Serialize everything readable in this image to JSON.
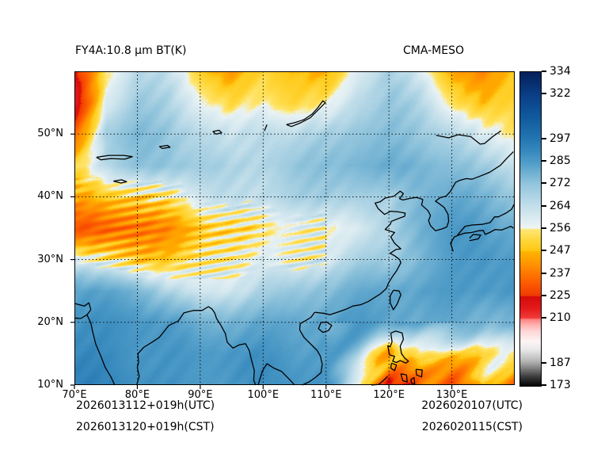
{
  "figure": {
    "title": "FY4A:10.8 μm BT(K)",
    "model_label": "CMA-MESO"
  },
  "axes": {
    "lon_range": [
      70,
      140
    ],
    "lat_range": [
      10,
      60
    ],
    "lon_ticks": [
      {
        "value": 70,
        "label": "70°E"
      },
      {
        "value": 80,
        "label": "80°E"
      },
      {
        "value": 90,
        "label": "90°E"
      },
      {
        "value": 100,
        "label": "100°E"
      },
      {
        "value": 110,
        "label": "110°E"
      },
      {
        "value": 120,
        "label": "120°E"
      },
      {
        "value": 130,
        "label": "130°E"
      }
    ],
    "lat_ticks": [
      {
        "value": 50,
        "label": "50°N"
      },
      {
        "value": 40,
        "label": "40°N"
      },
      {
        "value": 30,
        "label": "30°N"
      },
      {
        "value": 20,
        "label": "20°N"
      },
      {
        "value": 10,
        "label": "10°N"
      }
    ],
    "gridline_lons": [
      80,
      90,
      100,
      110,
      120,
      130
    ],
    "gridline_lats": [
      50,
      40,
      30,
      20
    ]
  },
  "colorbar": {
    "levels": [
      334,
      322,
      310,
      297,
      285,
      272,
      264,
      256,
      247,
      237,
      225,
      210,
      198,
      187,
      173
    ],
    "tick_labels": [
      "334",
      "322",
      "297",
      "285",
      "272",
      "264",
      "256",
      "247",
      "237",
      "225",
      "210",
      "187",
      "173"
    ],
    "gradient_stops": [
      [
        173,
        "#000000"
      ],
      [
        179,
        "#3c3c3c"
      ],
      [
        185,
        "#8a8a8a"
      ],
      [
        189,
        "#bdbdbd"
      ],
      [
        194,
        "#e9e9e9"
      ],
      [
        198,
        "#fdf5f5"
      ],
      [
        203,
        "#ffd9d9"
      ],
      [
        207,
        "#ffb0b0"
      ],
      [
        210,
        "#ff7d7d"
      ],
      [
        210.4,
        "#f23c3c"
      ],
      [
        217,
        "#e51b1b"
      ],
      [
        225,
        "#d60b0b"
      ],
      [
        225.4,
        "#ef3a02"
      ],
      [
        231,
        "#fb5500"
      ],
      [
        237,
        "#ff7600"
      ],
      [
        242,
        "#ff9800"
      ],
      [
        247,
        "#ffb300"
      ],
      [
        247.4,
        "#ffc713"
      ],
      [
        252,
        "#ffd83e"
      ],
      [
        256,
        "#ffe878"
      ],
      [
        256.4,
        "#eef5f6"
      ],
      [
        264,
        "#c5e0eb"
      ],
      [
        272,
        "#94c6dd"
      ],
      [
        279,
        "#6fb0d2"
      ],
      [
        285,
        "#4f9cc8"
      ],
      [
        291,
        "#3789bd"
      ],
      [
        297,
        "#2577b2"
      ],
      [
        310,
        "#115a9e"
      ],
      [
        322,
        "#0a3e86"
      ],
      [
        334,
        "#05215c"
      ]
    ]
  },
  "footer": {
    "left_utc": "2026013112+019h(UTC)",
    "left_cst": "2026013120+019h(CST)",
    "right_utc": "2026020107(UTC)",
    "right_cst": "2026020115(CST)"
  },
  "chart_data": {
    "type": "heatmap",
    "title": "FY4A:10.8 μm BT(K)",
    "model": "CMA-MESO",
    "units": "K",
    "lon_range": [
      70,
      140
    ],
    "lat_range": [
      10,
      60
    ],
    "colorbar_ticks": [
      334,
      322,
      297,
      285,
      272,
      264,
      256,
      247,
      237,
      225,
      210,
      187,
      173
    ],
    "grid_lons": [
      70,
      75,
      80,
      85,
      90,
      95,
      100,
      105,
      110,
      115,
      120,
      125,
      130,
      135,
      140
    ],
    "grid_lats": [
      60,
      55,
      50,
      45,
      40,
      35,
      30,
      25,
      20,
      15,
      10
    ],
    "bt_values": [
      [
        222,
        256,
        266,
        262,
        250,
        242,
        252,
        250,
        244,
        260,
        268,
        258,
        246,
        240,
        250
      ],
      [
        214,
        262,
        272,
        268,
        258,
        250,
        256,
        252,
        256,
        268,
        272,
        266,
        254,
        246,
        252
      ],
      [
        232,
        270,
        276,
        273,
        268,
        262,
        266,
        264,
        268,
        274,
        276,
        272,
        268,
        258,
        254
      ],
      [
        252,
        266,
        271,
        273,
        271,
        268,
        269,
        271,
        273,
        277,
        279,
        279,
        276,
        270,
        264
      ],
      [
        246,
        250,
        249,
        254,
        261,
        265,
        267,
        269,
        271,
        269,
        266,
        277,
        281,
        279,
        274
      ],
      [
        231,
        234,
        237,
        241,
        247,
        251,
        254,
        257,
        259,
        261,
        267,
        279,
        284,
        284,
        281
      ],
      [
        261,
        254,
        249,
        251,
        255,
        257,
        259,
        255,
        261,
        269,
        271,
        279,
        284,
        286,
        284
      ],
      [
        284,
        281,
        277,
        267,
        261,
        264,
        269,
        271,
        274,
        279,
        282,
        284,
        286,
        287,
        286
      ],
      [
        289,
        289,
        287,
        284,
        277,
        279,
        282,
        283,
        284,
        285,
        282,
        279,
        281,
        279,
        277
      ],
      [
        291,
        291,
        289,
        287,
        285,
        286,
        287,
        285,
        286,
        272,
        245,
        252,
        247,
        256,
        251
      ],
      [
        292,
        292,
        290,
        288,
        287,
        287,
        288,
        287,
        286,
        257,
        226,
        236,
        229,
        246,
        241
      ]
    ]
  }
}
